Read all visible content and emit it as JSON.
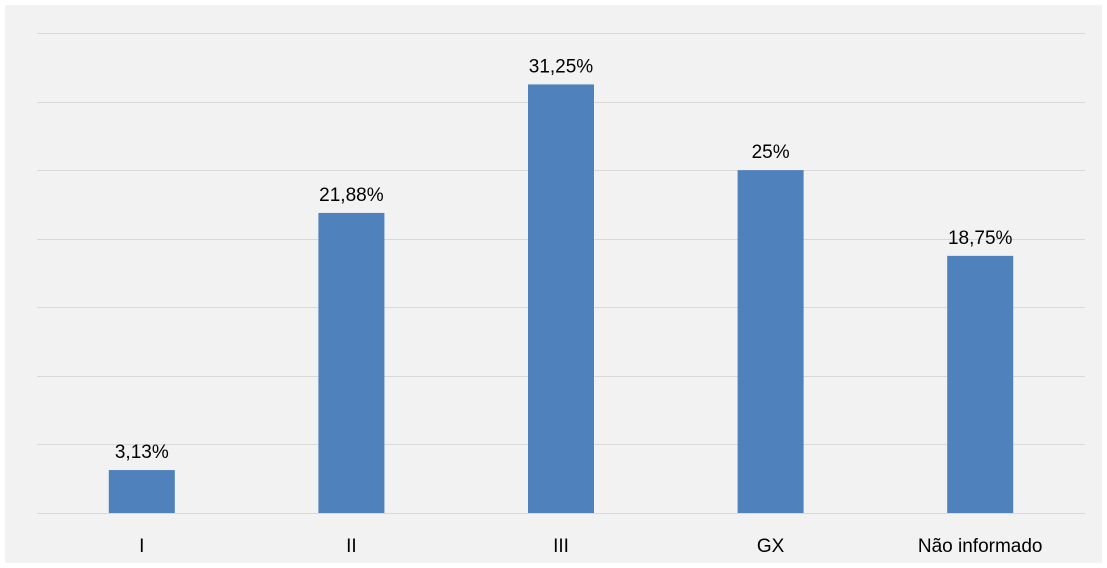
{
  "chart_data": {
    "type": "bar",
    "categories": [
      "I",
      "II",
      "III",
      "GX",
      "Não informado"
    ],
    "values": [
      3.13,
      21.88,
      31.25,
      25,
      18.75
    ],
    "data_labels": [
      "3,13%",
      "21,88%",
      "31,25%",
      "25%",
      "18,75%"
    ],
    "title": "",
    "xlabel": "",
    "ylabel": "",
    "ylim": [
      0,
      35
    ],
    "grid": true,
    "y_axis_labels_visible": false,
    "legend": "none",
    "bar_color": "#4f81bd",
    "gridline_color": "#d9d9d9",
    "background_color": "#f2f2f2"
  }
}
